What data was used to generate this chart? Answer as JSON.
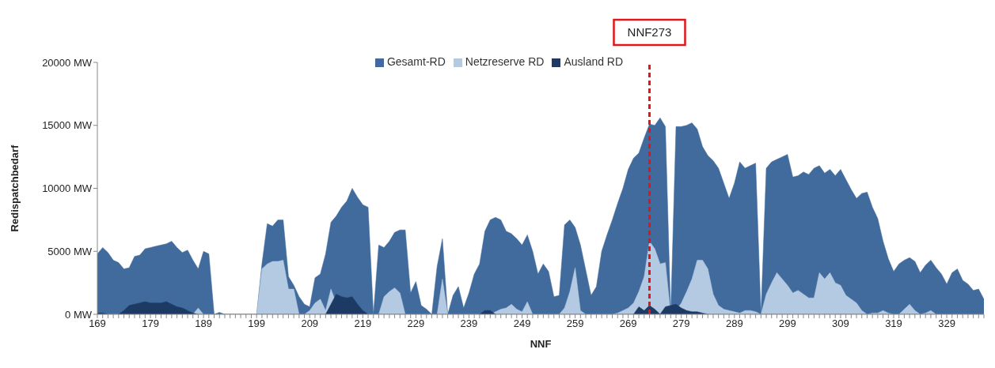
{
  "chart_data": {
    "type": "area",
    "xlabel": "NNF",
    "ylabel": "Redispatchbedarf",
    "legend": "top",
    "x": [
      169,
      170,
      171,
      172,
      173,
      174,
      175,
      176,
      177,
      178,
      179,
      180,
      181,
      182,
      183,
      184,
      185,
      186,
      187,
      188,
      189,
      190,
      191,
      192,
      193,
      194,
      195,
      196,
      197,
      198,
      199,
      200,
      201,
      202,
      203,
      204,
      205,
      206,
      207,
      208,
      209,
      210,
      211,
      212,
      213,
      214,
      215,
      216,
      217,
      218,
      219,
      220,
      221,
      222,
      223,
      224,
      225,
      226,
      227,
      228,
      229,
      230,
      231,
      232,
      233,
      234,
      235,
      236,
      237,
      238,
      239,
      240,
      241,
      242,
      243,
      244,
      245,
      246,
      247,
      248,
      249,
      250,
      251,
      252,
      253,
      254,
      255,
      256,
      257,
      258,
      259,
      260,
      261,
      262,
      263,
      264,
      265,
      266,
      267,
      268,
      269,
      270,
      271,
      272,
      273,
      274,
      275,
      276,
      277,
      278,
      279,
      280,
      281,
      282,
      283,
      284,
      285,
      286,
      287,
      288,
      289,
      290,
      291,
      292,
      293,
      294,
      295,
      296,
      297,
      298,
      299,
      300,
      301,
      302,
      303,
      304,
      305,
      306,
      307,
      308,
      309,
      310,
      311,
      312,
      313,
      314,
      315,
      316,
      317,
      318,
      319,
      320,
      321,
      322,
      323,
      324,
      325,
      326,
      327,
      328,
      329,
      330,
      331,
      332,
      333,
      334,
      335,
      336
    ],
    "series": [
      {
        "name": "Gesamt-RD",
        "color": "#406b9c",
        "values": [
          4800,
          5300,
          4900,
          4300,
          4100,
          3600,
          3700,
          4600,
          4700,
          5200,
          5300,
          5400,
          5500,
          5600,
          5800,
          5300,
          4900,
          5100,
          4300,
          3600,
          5000,
          4800,
          0,
          150,
          0,
          0,
          0,
          0,
          0,
          0,
          0,
          4000,
          7200,
          7000,
          7500,
          7500,
          3000,
          2300,
          1400,
          800,
          600,
          2900,
          3200,
          4800,
          7300,
          7800,
          8500,
          9000,
          10000,
          9300,
          8700,
          8500,
          0,
          5500,
          5300,
          5800,
          6500,
          6700,
          6700,
          1700,
          2600,
          700,
          400,
          0,
          3800,
          6000,
          0,
          1500,
          2200,
          500,
          1700,
          3200,
          4000,
          6600,
          7500,
          7700,
          7500,
          6600,
          6400,
          6000,
          5500,
          6300,
          5000,
          3200,
          4000,
          3400,
          1400,
          1500,
          7100,
          7500,
          6900,
          5500,
          3500,
          1500,
          2200,
          5000,
          6300,
          7500,
          8800,
          10000,
          11500,
          12400,
          12800,
          14000,
          15100,
          15000,
          15600,
          14900,
          0,
          14900,
          14900,
          15000,
          15200,
          14700,
          13300,
          12600,
          12200,
          11600,
          10400,
          9200,
          10400,
          12100,
          11600,
          11800,
          12000,
          0,
          11600,
          12100,
          12300,
          12500,
          12700,
          10900,
          11000,
          11300,
          11100,
          11600,
          11800,
          11200,
          11500,
          11000,
          11500,
          10700,
          9900,
          9200,
          9600,
          9700,
          8500,
          7600,
          5800,
          4400,
          3400,
          4000,
          4300,
          4500,
          4200,
          3300,
          3900,
          4300,
          3700,
          3200,
          2400,
          3300,
          3600,
          2700,
          2400,
          1900,
          2000,
          1200
        ]
      },
      {
        "name": "Netzreserve RD",
        "color": "#b4c9e2",
        "values": [
          0,
          0,
          0,
          0,
          0,
          0,
          0,
          0,
          0,
          0,
          0,
          0,
          0,
          0,
          0,
          0,
          0,
          300,
          0,
          500,
          0,
          0,
          0,
          0,
          0,
          0,
          0,
          0,
          0,
          0,
          0,
          3600,
          4000,
          4200,
          4200,
          4300,
          2000,
          2000,
          0,
          0,
          300,
          900,
          1200,
          300,
          2000,
          900,
          0,
          0,
          0,
          0,
          0,
          0,
          0,
          0,
          1400,
          1800,
          2100,
          1700,
          0,
          0,
          0,
          0,
          0,
          0,
          0,
          2800,
          0,
          0,
          0,
          0,
          0,
          0,
          0,
          0,
          0,
          200,
          400,
          500,
          800,
          400,
          200,
          1000,
          0,
          0,
          0,
          0,
          0,
          0,
          500,
          1800,
          3700,
          300,
          0,
          0,
          0,
          0,
          0,
          0,
          100,
          300,
          500,
          900,
          1800,
          3000,
          5800,
          5200,
          4000,
          4100,
          0,
          300,
          900,
          1800,
          2800,
          4300,
          4300,
          3600,
          1600,
          700,
          400,
          300,
          200,
          100,
          300,
          300,
          200,
          0,
          1600,
          2500,
          3300,
          2800,
          2300,
          1700,
          1900,
          1600,
          1300,
          1300,
          3300,
          2800,
          3300,
          2500,
          2300,
          1500,
          1200,
          900,
          300,
          0,
          100,
          100,
          300,
          100,
          0,
          0,
          400,
          800,
          300,
          0,
          100,
          300,
          0,
          0,
          0,
          0,
          0,
          0,
          0,
          0,
          0,
          0
        ]
      },
      {
        "name": "Ausland RD",
        "color": "#1c3a63",
        "values": [
          100,
          100,
          0,
          0,
          0,
          300,
          700,
          800,
          900,
          1000,
          900,
          900,
          900,
          1000,
          800,
          600,
          500,
          300,
          100,
          0,
          0,
          0,
          0,
          0,
          0,
          0,
          0,
          0,
          0,
          0,
          0,
          0,
          0,
          0,
          0,
          0,
          0,
          0,
          0,
          0,
          0,
          0,
          0,
          0,
          800,
          1600,
          1400,
          1300,
          1400,
          800,
          300,
          0,
          0,
          0,
          0,
          0,
          0,
          0,
          0,
          0,
          0,
          0,
          0,
          0,
          0,
          0,
          0,
          0,
          0,
          0,
          0,
          0,
          0,
          300,
          300,
          0,
          0,
          0,
          0,
          0,
          0,
          0,
          0,
          0,
          0,
          0,
          0,
          0,
          0,
          0,
          0,
          0,
          0,
          0,
          0,
          0,
          0,
          0,
          0,
          0,
          0,
          0,
          600,
          300,
          700,
          400,
          0,
          600,
          700,
          800,
          500,
          300,
          200,
          200,
          100,
          0,
          0,
          0,
          0,
          0,
          0,
          0,
          0,
          0,
          0,
          0,
          0,
          0,
          0,
          0,
          0,
          0,
          0,
          0,
          0,
          0,
          0,
          0,
          0,
          0,
          0,
          0,
          0,
          0,
          0,
          0,
          0,
          0,
          0,
          0,
          0,
          0,
          0,
          0,
          0,
          0,
          0,
          0,
          0,
          0,
          0,
          0,
          0,
          0,
          0,
          0,
          0,
          0
        ]
      }
    ],
    "xlim": [
      169,
      336
    ],
    "xticks": [
      169,
      {
        "value": 170,
        "label": null
      },
      {
        "value": 171,
        "label": null
      },
      {
        "value": 172,
        "label": null
      },
      {
        "value": 173,
        "label": null
      },
      {
        "value": 174,
        "label": null
      },
      {
        "value": 175,
        "label": null
      },
      {
        "value": 176,
        "label": null
      },
      {
        "value": 177,
        "label": null
      },
      {
        "value": 178,
        "label": null
      },
      179,
      {
        "value": 180,
        "label": null
      },
      {
        "value": 181,
        "label": null
      },
      {
        "value": 182,
        "label": null
      },
      {
        "value": 183,
        "label": null
      },
      {
        "value": 184,
        "label": null
      },
      {
        "value": 185,
        "label": null
      },
      {
        "value": 186,
        "label": null
      },
      {
        "value": 187,
        "label": null
      },
      {
        "value": 188,
        "label": null
      },
      189,
      {
        "value": 190,
        "label": null
      },
      {
        "value": 191,
        "label": null
      },
      {
        "value": 192,
        "label": null
      },
      {
        "value": 193,
        "label": null
      },
      {
        "value": 194,
        "label": null
      },
      {
        "value": 195,
        "label": null
      },
      {
        "value": 196,
        "label": null
      },
      {
        "value": 197,
        "label": null
      },
      {
        "value": 198,
        "label": null
      },
      199,
      {
        "value": 200,
        "label": null
      },
      {
        "value": 201,
        "label": null
      },
      {
        "value": 202,
        "label": null
      },
      {
        "value": 203,
        "label": null
      },
      {
        "value": 204,
        "label": null
      },
      {
        "value": 205,
        "label": null
      },
      {
        "value": 206,
        "label": null
      },
      {
        "value": 207,
        "label": null
      },
      {
        "value": 208,
        "label": null
      },
      209,
      {
        "value": 210,
        "label": null
      },
      {
        "value": 211,
        "label": null
      },
      {
        "value": 212,
        "label": null
      },
      {
        "value": 213,
        "label": null
      },
      {
        "value": 214,
        "label": null
      },
      {
        "value": 215,
        "label": null
      },
      {
        "value": 216,
        "label": null
      },
      {
        "value": 217,
        "label": null
      },
      {
        "value": 218,
        "label": null
      },
      219,
      {
        "value": 220,
        "label": null
      },
      {
        "value": 221,
        "label": null
      },
      {
        "value": 222,
        "label": null
      },
      {
        "value": 223,
        "label": null
      },
      {
        "value": 224,
        "label": null
      },
      {
        "value": 225,
        "label": null
      },
      {
        "value": 226,
        "label": null
      },
      {
        "value": 227,
        "label": null
      },
      {
        "value": 228,
        "label": null
      },
      229,
      {
        "value": 230,
        "label": null
      },
      {
        "value": 231,
        "label": null
      },
      {
        "value": 232,
        "label": null
      },
      {
        "value": 233,
        "label": null
      },
      {
        "value": 234,
        "label": null
      },
      {
        "value": 235,
        "label": null
      },
      {
        "value": 236,
        "label": null
      },
      {
        "value": 237,
        "label": null
      },
      {
        "value": 238,
        "label": null
      },
      239,
      {
        "value": 240,
        "label": null
      },
      {
        "value": 241,
        "label": null
      },
      {
        "value": 242,
        "label": null
      },
      {
        "value": 243,
        "label": null
      },
      {
        "value": 244,
        "label": null
      },
      {
        "value": 245,
        "label": null
      },
      {
        "value": 246,
        "label": null
      },
      {
        "value": 247,
        "label": null
      },
      {
        "value": 248,
        "label": null
      },
      249,
      {
        "value": 250,
        "label": null
      },
      {
        "value": 251,
        "label": null
      },
      {
        "value": 252,
        "label": null
      },
      {
        "value": 253,
        "label": null
      },
      {
        "value": 254,
        "label": null
      },
      {
        "value": 255,
        "label": null
      },
      {
        "value": 256,
        "label": null
      },
      {
        "value": 257,
        "label": null
      },
      {
        "value": 258,
        "label": null
      },
      259,
      {
        "value": 260,
        "label": null
      },
      {
        "value": 261,
        "label": null
      },
      {
        "value": 262,
        "label": null
      },
      {
        "value": 263,
        "label": null
      },
      {
        "value": 264,
        "label": null
      },
      {
        "value": 265,
        "label": null
      },
      {
        "value": 266,
        "label": null
      },
      {
        "value": 267,
        "label": null
      },
      {
        "value": 268,
        "label": null
      },
      269,
      {
        "value": 270,
        "label": null
      },
      {
        "value": 271,
        "label": null
      },
      {
        "value": 272,
        "label": null
      },
      {
        "value": 273,
        "label": null
      },
      {
        "value": 274,
        "label": null
      },
      {
        "value": 275,
        "label": null
      },
      {
        "value": 276,
        "label": null
      },
      {
        "value": 277,
        "label": null
      },
      {
        "value": 278,
        "label": null
      },
      279,
      {
        "value": 280,
        "label": null
      },
      {
        "value": 281,
        "label": null
      },
      {
        "value": 282,
        "label": null
      },
      {
        "value": 283,
        "label": null
      },
      {
        "value": 284,
        "label": null
      },
      {
        "value": 285,
        "label": null
      },
      {
        "value": 286,
        "label": null
      },
      {
        "value": 287,
        "label": null
      },
      {
        "value": 288,
        "label": null
      },
      289,
      {
        "value": 290,
        "label": null
      },
      {
        "value": 291,
        "label": null
      },
      {
        "value": 292,
        "label": null
      },
      {
        "value": 293,
        "label": null
      },
      {
        "value": 294,
        "label": null
      },
      {
        "value": 295,
        "label": null
      },
      {
        "value": 296,
        "label": null
      },
      {
        "value": 297,
        "label": null
      },
      {
        "value": 298,
        "label": null
      },
      299,
      {
        "value": 300,
        "label": null
      },
      {
        "value": 301,
        "label": null
      },
      {
        "value": 302,
        "label": null
      },
      {
        "value": 303,
        "label": null
      },
      {
        "value": 304,
        "label": null
      },
      {
        "value": 305,
        "label": null
      },
      {
        "value": 306,
        "label": null
      },
      {
        "value": 307,
        "label": null
      },
      {
        "value": 308,
        "label": null
      },
      309,
      {
        "value": 310,
        "label": null
      },
      {
        "value": 311,
        "label": null
      },
      {
        "value": 312,
        "label": null
      },
      {
        "value": 313,
        "label": null
      },
      {
        "value": 314,
        "label": null
      },
      {
        "value": 315,
        "label": null
      },
      {
        "value": 316,
        "label": null
      },
      {
        "value": 317,
        "label": null
      },
      {
        "value": 318,
        "label": null
      },
      319,
      {
        "value": 320,
        "label": null
      },
      {
        "value": 321,
        "label": null
      },
      {
        "value": 322,
        "label": null
      },
      {
        "value": 323,
        "label": null
      },
      {
        "value": 324,
        "label": null
      },
      {
        "value": 325,
        "label": null
      },
      {
        "value": 326,
        "label": null
      },
      {
        "value": 327,
        "label": null
      },
      {
        "value": 328,
        "label": null
      },
      329,
      {
        "value": 330,
        "label": null
      },
      {
        "value": 331,
        "label": null
      },
      {
        "value": 332,
        "label": null
      },
      {
        "value": 333,
        "label": null
      },
      {
        "value": 334,
        "label": null
      },
      {
        "value": 335,
        "label": null
      },
      {
        "value": 336,
        "label": null
      }
    ],
    "ylim": [
      0,
      20000
    ],
    "yticks": [
      {
        "value": 0,
        "label": "0 MW"
      },
      {
        "value": 5000,
        "label": "5000 MW"
      },
      {
        "value": 10000,
        "label": "10000 MW"
      },
      {
        "value": 15000,
        "label": "15000 MW"
      },
      {
        "value": 20000,
        "label": "20000 MW"
      }
    ],
    "ref_lines": [
      {
        "axis": "x",
        "value": 273,
        "label": "NNF273",
        "color": "#e0161b",
        "line_style": "dashed"
      }
    ]
  }
}
